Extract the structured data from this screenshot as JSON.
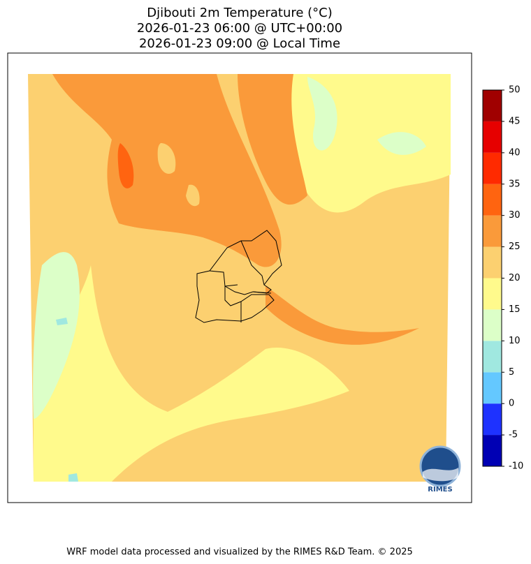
{
  "title": [
    "Djibouti 2m Temperature (°C)",
    "2026-01-23 06:00 @ UTC+00:00",
    "2026-01-23 09:00 @ Local Time"
  ],
  "colorbar": {
    "boundaries": [
      -10,
      -5,
      0,
      5,
      10,
      15,
      20,
      25,
      30,
      35,
      40,
      45,
      50
    ],
    "colors": [
      "#0000b4",
      "#1e32ff",
      "#64c8ff",
      "#a0e8e0",
      "#dcffc8",
      "#fffa8c",
      "#fcd070",
      "#fa9a3a",
      "#ff6410",
      "#ff2a00",
      "#e60000",
      "#a00000"
    ]
  },
  "logo": "RIMES",
  "footer": "WRF model data processed and visualized by the RIMES R&D Team. © 2025"
}
